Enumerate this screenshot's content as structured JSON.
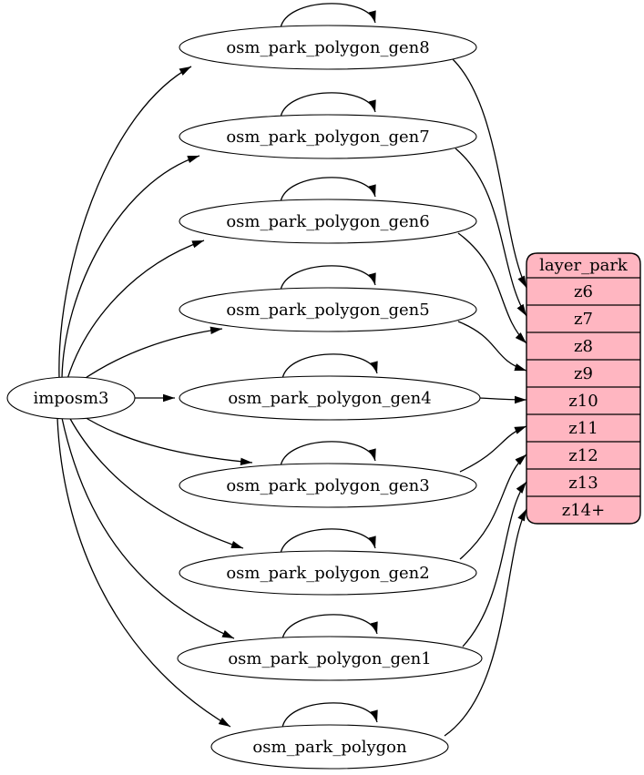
{
  "diagram": {
    "background": "#ffffff",
    "source": {
      "id": "imposm3",
      "label": "imposm3"
    },
    "tables": [
      {
        "id": "osm_park_polygon_gen8",
        "label": "osm_park_polygon_gen8"
      },
      {
        "id": "osm_park_polygon_gen7",
        "label": "osm_park_polygon_gen7"
      },
      {
        "id": "osm_park_polygon_gen6",
        "label": "osm_park_polygon_gen6"
      },
      {
        "id": "osm_park_polygon_gen5",
        "label": "osm_park_polygon_gen5"
      },
      {
        "id": "osm_park_polygon_gen4",
        "label": "osm_park_polygon_gen4"
      },
      {
        "id": "osm_park_polygon_gen3",
        "label": "osm_park_polygon_gen3"
      },
      {
        "id": "osm_park_polygon_gen2",
        "label": "osm_park_polygon_gen2"
      },
      {
        "id": "osm_park_polygon_gen1",
        "label": "osm_park_polygon_gen1"
      },
      {
        "id": "osm_park_polygon",
        "label": "osm_park_polygon"
      }
    ],
    "layer": {
      "title": "layer_park",
      "rows": [
        "z6",
        "z7",
        "z8",
        "z9",
        "z10",
        "z11",
        "z12",
        "z13",
        "z14+"
      ],
      "fill": "#ffb6c1",
      "stroke": "#000000"
    },
    "edges": {
      "from_source": [
        "osm_park_polygon_gen8",
        "osm_park_polygon_gen7",
        "osm_park_polygon_gen6",
        "osm_park_polygon_gen5",
        "osm_park_polygon_gen4",
        "osm_park_polygon_gen3",
        "osm_park_polygon_gen2",
        "osm_park_polygon_gen1",
        "osm_park_polygon"
      ],
      "self_loops": [
        "osm_park_polygon_gen8",
        "osm_park_polygon_gen7",
        "osm_park_polygon_gen6",
        "osm_park_polygon_gen5",
        "osm_park_polygon_gen4",
        "osm_park_polygon_gen3",
        "osm_park_polygon_gen2",
        "osm_park_polygon_gen1",
        "osm_park_polygon"
      ],
      "to_layer": [
        {
          "from": "osm_park_polygon_gen8",
          "to": "z6"
        },
        {
          "from": "osm_park_polygon_gen7",
          "to": "z7"
        },
        {
          "from": "osm_park_polygon_gen6",
          "to": "z8"
        },
        {
          "from": "osm_park_polygon_gen5",
          "to": "z9"
        },
        {
          "from": "osm_park_polygon_gen4",
          "to": "z10"
        },
        {
          "from": "osm_park_polygon_gen3",
          "to": "z11"
        },
        {
          "from": "osm_park_polygon_gen2",
          "to": "z12"
        },
        {
          "from": "osm_park_polygon_gen1",
          "to": "z13"
        },
        {
          "from": "osm_park_polygon",
          "to": "z14+"
        }
      ]
    },
    "colors": {
      "node_fill": "#ffffff",
      "node_stroke": "#000000",
      "edge": "#000000",
      "text": "#000000"
    }
  }
}
